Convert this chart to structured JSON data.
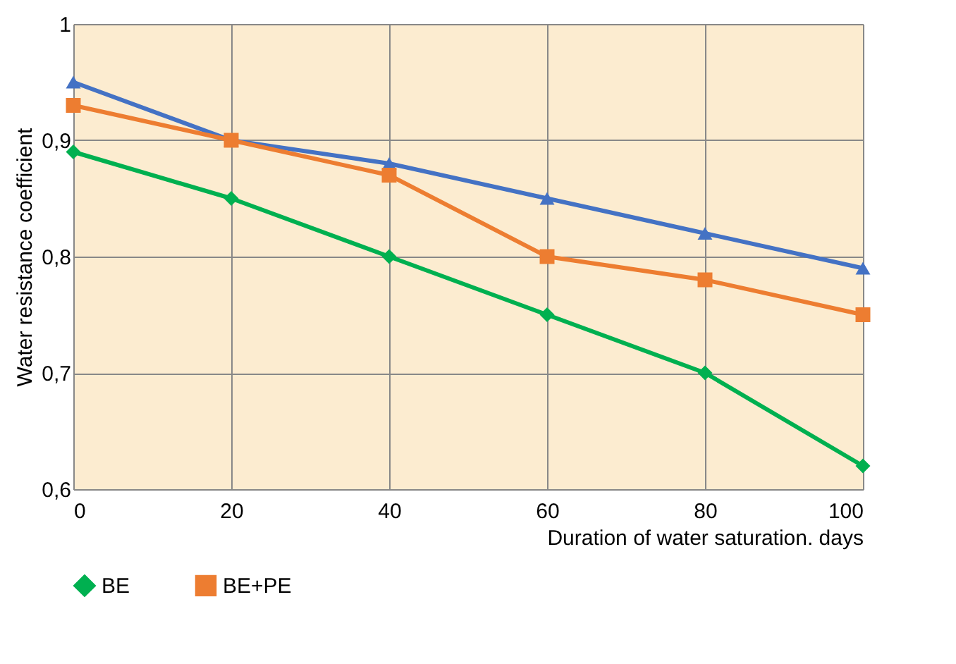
{
  "chart_data": {
    "type": "line",
    "xlabel": "Duration of water saturation. days",
    "ylabel": "Water resistance coefficient",
    "x": [
      0,
      20,
      40,
      60,
      80,
      100
    ],
    "series": [
      {
        "name": "BE",
        "color": "#00b050",
        "marker": "diamond",
        "values": [
          0.89,
          0.85,
          0.8,
          0.75,
          0.7,
          0.62
        ]
      },
      {
        "name": "BE+PE",
        "color": "#ed7d31",
        "marker": "square",
        "values": [
          0.93,
          0.9,
          0.87,
          0.8,
          0.78,
          0.75
        ]
      },
      {
        "color": "#4472c4",
        "marker": "triangle",
        "values": [
          0.95,
          0.9,
          0.88,
          0.85,
          0.82,
          0.79
        ]
      }
    ],
    "xlim": [
      0,
      100
    ],
    "xticks": [
      0,
      20,
      40,
      60,
      80,
      100
    ],
    "ylim": [
      0.6,
      1
    ],
    "yticks": [
      {
        "value": 0.6,
        "label": "0,6"
      },
      {
        "value": 0.7,
        "label": "0,7"
      },
      {
        "value": 0.8,
        "label": "0,8"
      },
      {
        "value": 0.9,
        "label": "0,9"
      },
      {
        "value": 1,
        "label": "1"
      }
    ],
    "grid": true,
    "legend": "bottom",
    "line_style": "solid"
  }
}
